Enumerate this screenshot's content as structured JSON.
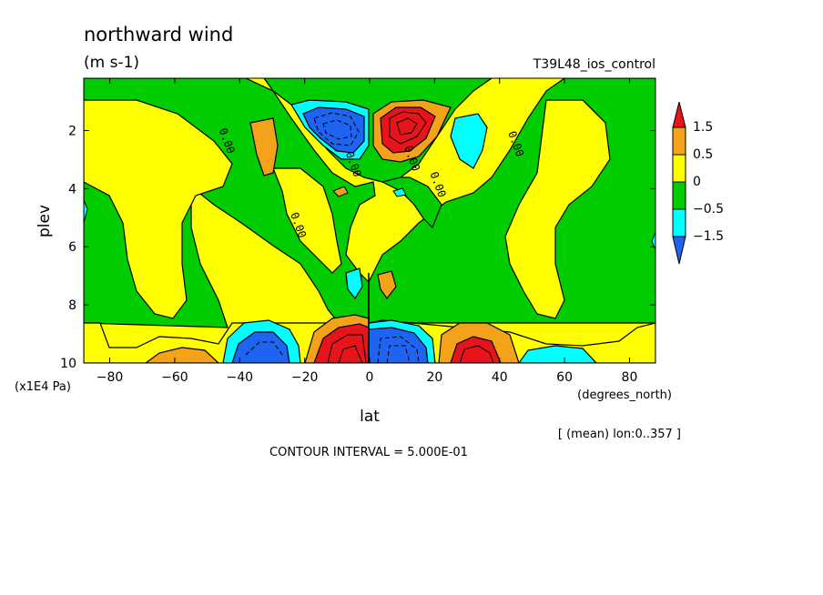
{
  "chart_data": {
    "type": "contour",
    "title": "northward wind",
    "units": "(m s-1)",
    "run_label": "T39L48_ios_control",
    "xlabel": "lat",
    "xunits": "(degrees_north)",
    "ylabel": "plev",
    "yunits": "(x1E4 Pa)",
    "averaging_note": "[ (mean) lon:0..357 ]",
    "contour_interval_text": "CONTOUR INTERVAL = 5.000E-01",
    "xlim": [
      -88,
      88
    ],
    "ylim": [
      10,
      0.2
    ],
    "x_ticks": [
      -80,
      -60,
      -40,
      -20,
      0,
      20,
      40,
      60,
      80
    ],
    "y_ticks": [
      2,
      4,
      6,
      8,
      10
    ],
    "contour_labels": [
      {
        "text": "0.00",
        "x": -45,
        "y": 2.4
      },
      {
        "text": "0.00",
        "x": -23,
        "y": 5.3
      },
      {
        "text": "0.00",
        "x": -6,
        "y": 3.2
      },
      {
        "text": "0.00",
        "x": 12,
        "y": 3.0
      },
      {
        "text": "0.00",
        "x": 20,
        "y": 3.9
      },
      {
        "text": "0.00",
        "x": 44,
        "y": 2.5
      }
    ],
    "colorbar": {
      "labels": [
        "1.5",
        "0.5",
        "0",
        "-0.5",
        "-1.5"
      ],
      "colors": [
        "#e8141c",
        "#f5a21b",
        "#ffff00",
        "#00cc00",
        "#00ffff",
        "#1f64f0"
      ]
    },
    "fields": [
      {
        "name": "upper-left negative core",
        "x": -8,
        "y": 2.0,
        "min": -2.5
      },
      {
        "name": "upper-right positive core",
        "x": 8,
        "y": 2.0,
        "max": 3.0
      },
      {
        "name": "lower positive core",
        "x": -5,
        "y": 9.5,
        "max": 3.0
      },
      {
        "name": "lower negative core",
        "x": 6,
        "y": 9.5,
        "min": -3.0
      },
      {
        "name": "lower positive core",
        "x": 32,
        "y": 9.7,
        "max": 2.0
      },
      {
        "name": "lower negative core",
        "x": -34,
        "y": 9.7,
        "min": -2.0
      }
    ]
  }
}
